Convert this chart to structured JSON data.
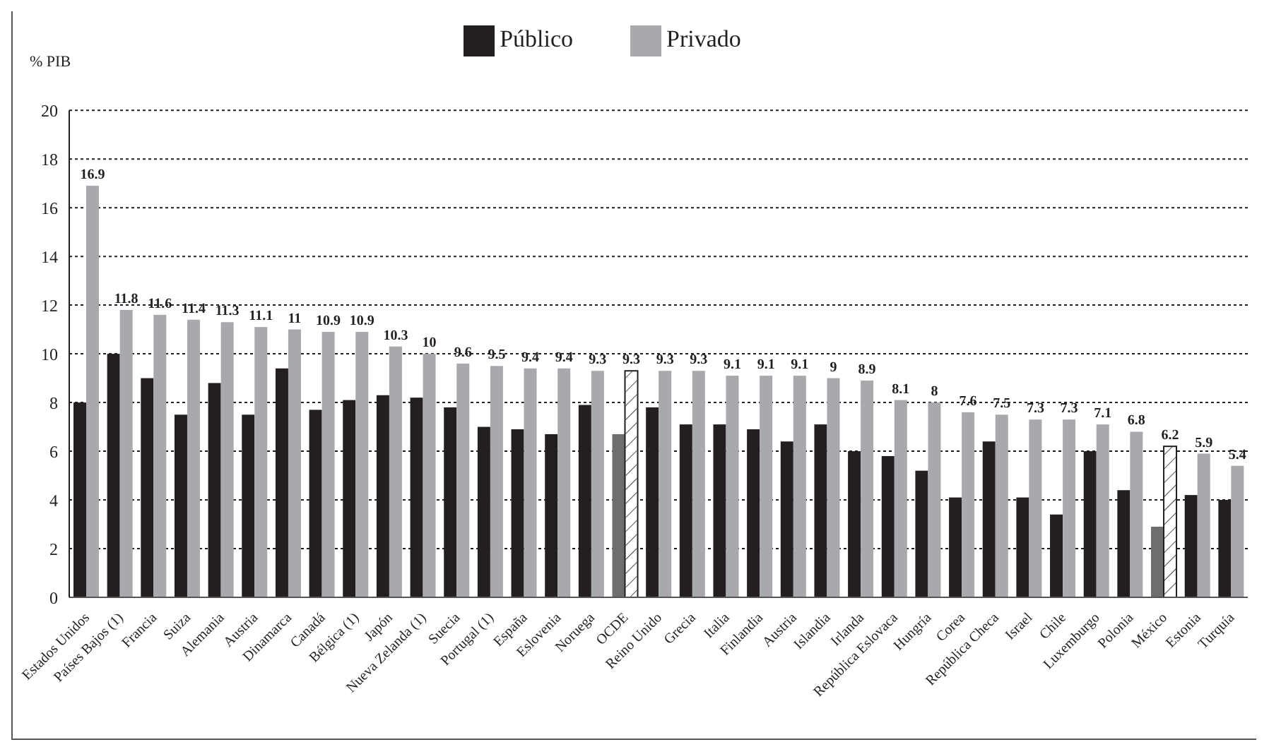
{
  "chart_data": {
    "type": "bar",
    "ylabel": "% PIB",
    "categories": [
      "Estados Unidos",
      "Países Bajos (1)",
      "Francia",
      "Suiza",
      "Alemania",
      "Austria",
      "Dinamarca",
      "Canadá",
      "Bélgica (1)",
      "Japón",
      "Nueva Zelanda (1)",
      "Suecia",
      "Portugal (1)",
      "España",
      "Eslovenia",
      "Noruega",
      "OCDE",
      "Reino Unido",
      "Grecia",
      "Italia",
      "Finlandia",
      "Austria",
      "Islandia",
      "Irlanda",
      "República Eslovaca",
      "Hungría",
      "Corea",
      "República Checa",
      "Israel",
      "Chile",
      "Luxemburgo",
      "Polonia",
      "México",
      "Estonia",
      "Turquía"
    ],
    "series": [
      {
        "name": "Público",
        "color": "#231f20",
        "colors": [
          "#231f20",
          "#231f20",
          "#231f20",
          "#231f20",
          "#231f20",
          "#231f20",
          "#231f20",
          "#231f20",
          "#231f20",
          "#231f20",
          "#231f20",
          "#231f20",
          "#231f20",
          "#231f20",
          "#231f20",
          "#231f20",
          "#6d6e70",
          "#231f20",
          "#231f20",
          "#231f20",
          "#231f20",
          "#231f20",
          "#231f20",
          "#231f20",
          "#231f20",
          "#231f20",
          "#231f20",
          "#231f20",
          "#231f20",
          "#231f20",
          "#231f20",
          "#231f20",
          "#6d6e70",
          "#231f20",
          "#231f20"
        ],
        "values": [
          8.0,
          10.0,
          9.0,
          7.5,
          8.8,
          7.5,
          9.4,
          7.7,
          8.1,
          8.3,
          8.2,
          7.8,
          7.0,
          6.9,
          6.7,
          7.9,
          6.7,
          7.8,
          7.1,
          7.1,
          6.9,
          6.4,
          7.1,
          6.0,
          5.8,
          5.2,
          4.1,
          6.4,
          4.1,
          3.4,
          6.0,
          4.4,
          2.9,
          4.2,
          4.0
        ]
      },
      {
        "name": "Privado",
        "color": "#a7a9ac",
        "colors": [
          "#a7a9ac",
          "#a7a9ac",
          "#a7a9ac",
          "#a7a9ac",
          "#a7a9ac",
          "#a7a9ac",
          "#a7a9ac",
          "#a7a9ac",
          "#a7a9ac",
          "#a7a9ac",
          "#a7a9ac",
          "#a7a9ac",
          "#a7a9ac",
          "#a7a9ac",
          "#a7a9ac",
          "#a7a9ac",
          "#ffffff",
          "#a7a9ac",
          "#a7a9ac",
          "#a7a9ac",
          "#a7a9ac",
          "#a7a9ac",
          "#a7a9ac",
          "#a7a9ac",
          "#a7a9ac",
          "#a7a9ac",
          "#a7a9ac",
          "#a7a9ac",
          "#a7a9ac",
          "#a7a9ac",
          "#a7a9ac",
          "#a7a9ac",
          "#ffffff",
          "#a7a9ac",
          "#a7a9ac"
        ],
        "values": [
          16.9,
          11.8,
          11.6,
          11.4,
          11.3,
          11.1,
          11,
          10.9,
          10.9,
          10.3,
          10,
          9.6,
          9.5,
          9.4,
          9.4,
          9.3,
          9.3,
          9.3,
          9.3,
          9.1,
          9.1,
          9.1,
          9,
          8.9,
          8.1,
          8,
          7.6,
          7.5,
          7.3,
          7.3,
          7.1,
          6.8,
          6.2,
          5.9,
          5.4
        ],
        "value_labels": [
          "16.9",
          "11.8",
          "11.6",
          "11.4",
          "11.3",
          "11.1",
          "11",
          "10.9",
          "10.9",
          "10.3",
          "10",
          "9.6",
          "9.5",
          "9.4",
          "9.4",
          "9.3",
          "9.3",
          "9.3",
          "9.3",
          "9.1",
          "9.1",
          "9.1",
          "9",
          "8.9",
          "8.1",
          "8",
          "7.6",
          "7.5",
          "7.3",
          "7.3",
          "7.1",
          "6.8",
          "6.2",
          "5.9",
          "5.4"
        ]
      }
    ],
    "ylim": [
      0,
      20
    ],
    "yticks": [
      0,
      2,
      4,
      6,
      8,
      10,
      12,
      14,
      16,
      18,
      20
    ],
    "grid": "y",
    "legend": "top"
  }
}
